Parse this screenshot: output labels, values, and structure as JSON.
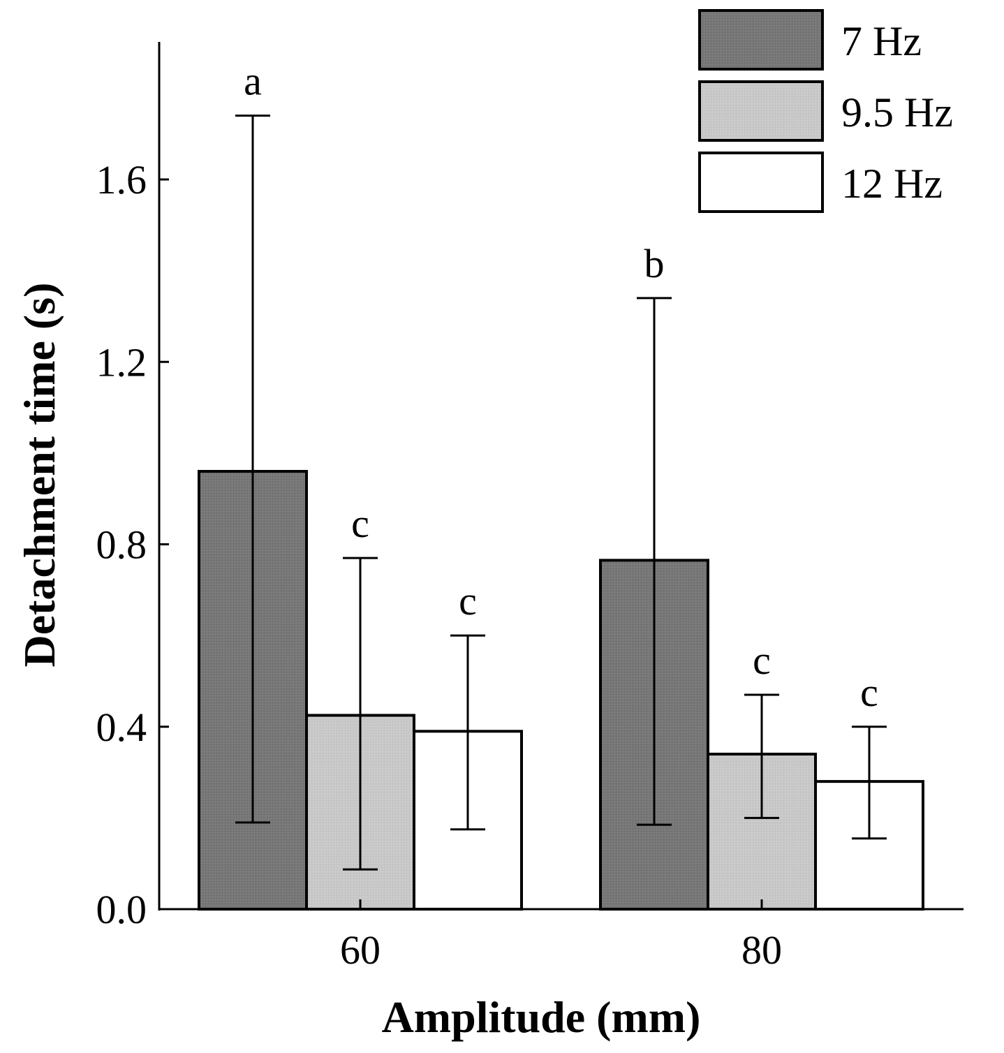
{
  "chart_data": {
    "type": "bar",
    "title": "",
    "xlabel": "Amplitude (mm)",
    "ylabel": "Detachment time (s)",
    "categories": [
      "60",
      "80"
    ],
    "ylim": [
      0,
      1.9
    ],
    "yticks": [
      0.0,
      0.4,
      0.8,
      1.2,
      1.6
    ],
    "ytick_labels": [
      "0.0",
      "0.4",
      "0.8",
      "1.2",
      "1.6"
    ],
    "grid": false,
    "legend_position": "top-right",
    "series": [
      {
        "name": "7 Hz",
        "color": "#7a7a7a",
        "values": [
          0.96,
          0.765
        ],
        "error_low": [
          0.19,
          0.185
        ],
        "error_high": [
          1.74,
          1.34
        ],
        "labels": [
          "a",
          "b"
        ]
      },
      {
        "name": "9.5 Hz",
        "color": "#c6c6c6",
        "values": [
          0.425,
          0.34
        ],
        "error_low": [
          0.087,
          0.2
        ],
        "error_high": [
          0.77,
          0.47
        ],
        "labels": [
          "c",
          "c"
        ]
      },
      {
        "name": "12 Hz",
        "color": "#ffffff",
        "values": [
          0.39,
          0.28
        ],
        "error_low": [
          0.175,
          0.155
        ],
        "error_high": [
          0.6,
          0.4
        ],
        "labels": [
          "c",
          "c"
        ]
      }
    ]
  }
}
